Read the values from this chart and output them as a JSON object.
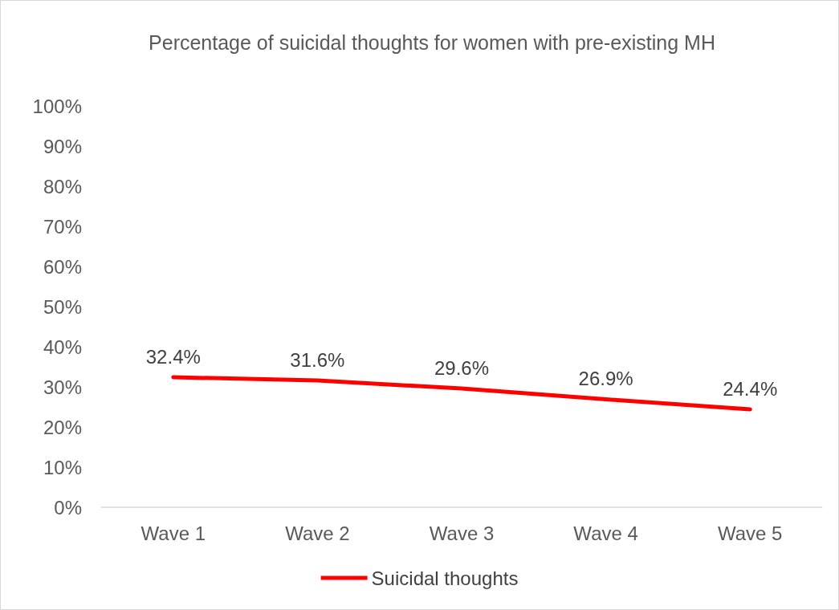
{
  "chart_data": {
    "type": "line",
    "title": "Percentage of suicidal thoughts for women with pre-existing MH",
    "categories": [
      "Wave 1",
      "Wave 2",
      "Wave 3",
      "Wave 4",
      "Wave 5"
    ],
    "series": [
      {
        "name": "Suicidal thoughts",
        "color": "#ff0000",
        "values": [
          32.4,
          31.6,
          29.6,
          26.9,
          24.4
        ],
        "value_labels": [
          "32.4%",
          "31.6%",
          "29.6%",
          "26.9%",
          "24.4%"
        ]
      }
    ],
    "ylim": [
      0,
      100
    ],
    "yticks": [
      {
        "value": 0,
        "label": "0%"
      },
      {
        "value": 10,
        "label": "10%"
      },
      {
        "value": 20,
        "label": "20%"
      },
      {
        "value": 30,
        "label": "30%"
      },
      {
        "value": 40,
        "label": "40%"
      },
      {
        "value": 50,
        "label": "50%"
      },
      {
        "value": 60,
        "label": "60%"
      },
      {
        "value": 70,
        "label": "70%"
      },
      {
        "value": 80,
        "label": "80%"
      },
      {
        "value": 90,
        "label": "90%"
      },
      {
        "value": 100,
        "label": "100%"
      }
    ],
    "grid": false,
    "legend": "bottom",
    "marker": "none",
    "line_style": "solid"
  }
}
